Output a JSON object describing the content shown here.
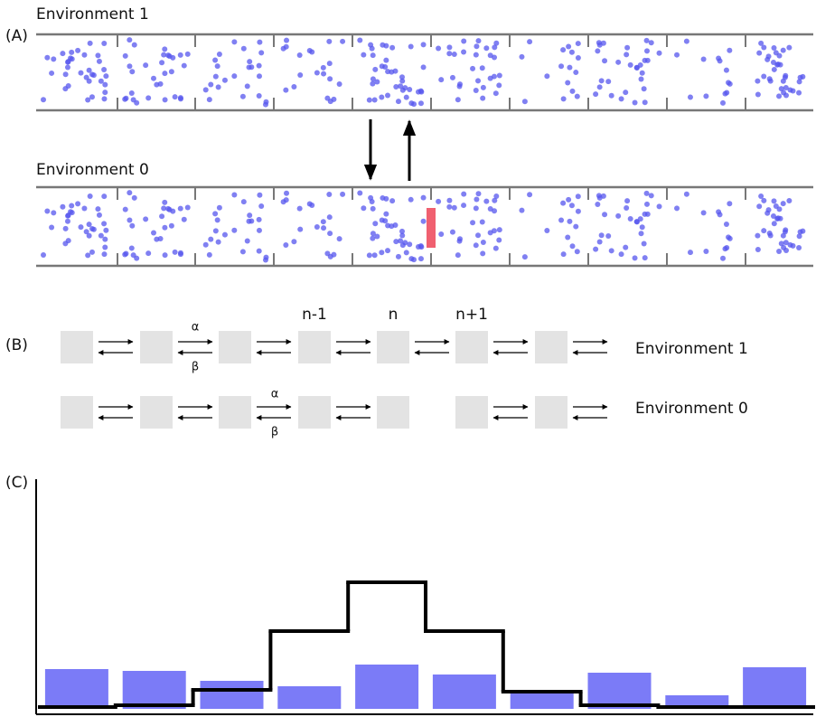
{
  "panel_a": {
    "label": "(A)",
    "top_title": "Environment 1",
    "bottom_title": "Environment 0"
  },
  "panel_b": {
    "label": "(B)",
    "site_labels": [
      "n-1",
      "n",
      "n+1"
    ],
    "rows": [
      {
        "name": "Environment 1",
        "rate_forward": "α",
        "rate_backward": "β"
      },
      {
        "name": "Environment 0",
        "rate_forward": "α",
        "rate_backward": "β"
      }
    ]
  },
  "panel_c": {
    "label": "(C)"
  },
  "chart_data": {
    "type": "bar",
    "categories": [
      null,
      null,
      null,
      null,
      null,
      null,
      null,
      null,
      null,
      null
    ],
    "series": [
      {
        "color": "#7b7bf7",
        "values": [
          44,
          42,
          31,
          25,
          49,
          38,
          17,
          40,
          15,
          46
        ]
      },
      {
        "color": "#000000",
        "type": "step",
        "values": [
          2,
          4,
          21,
          86,
          140,
          86,
          19,
          4,
          2,
          2
        ]
      }
    ],
    "ylim": [
      0,
      254
    ]
  }
}
